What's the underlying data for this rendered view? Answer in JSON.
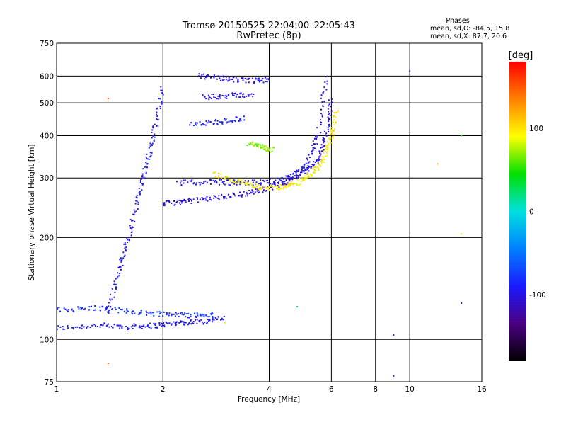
{
  "title": "Tromsø 20150525 22:04:00–22:05:43",
  "subtitle": "RwPretec (8p)",
  "info": {
    "heading": "Phases",
    "line1": "mean, sd,O: -84.5, 15.8",
    "line2": "mean, sd,X:  87.7, 20.6"
  },
  "colorbar": {
    "title": "[deg]",
    "ticks": [
      100,
      0,
      -100
    ],
    "tick_labels": [
      "100",
      "0",
      "-100"
    ],
    "range": [
      -180,
      180
    ],
    "colors": [
      "#000000",
      "#4b0082",
      "#1a1aff",
      "#0080ff",
      "#00e0e0",
      "#00e000",
      "#ffff00",
      "#ff8000",
      "#ff0000"
    ]
  },
  "chart_data": {
    "type": "scatter",
    "xlabel": "Frequency [MHz]",
    "ylabel": "Stationary phase Virtual Height [km]",
    "xscale": "log",
    "yscale": "log",
    "xlim": [
      1,
      16
    ],
    "ylim": [
      75,
      750
    ],
    "x_ticks": [
      1,
      2,
      4,
      6,
      8,
      10,
      16
    ],
    "x_tick_labels": [
      "1",
      "2",
      "4",
      "6",
      "8",
      "10",
      "16"
    ],
    "y_ticks": [
      75,
      100,
      200,
      300,
      400,
      500,
      600,
      750
    ],
    "y_tick_labels": [
      "75",
      "100",
      "200",
      "300",
      "400",
      "500",
      "600",
      "750"
    ],
    "grid": true,
    "color_quantity": "phase [deg]",
    "traces": [
      {
        "mode": "O",
        "freq": [
          1.0,
          1.3,
          1.6,
          1.9,
          2.2,
          2.6,
          3.0
        ],
        "height": [
          108,
          110,
          109,
          110,
          112,
          113,
          116
        ],
        "phase": -95
      },
      {
        "mode": "O",
        "freq": [
          1.0,
          1.3,
          1.6,
          2.0,
          2.4,
          2.8
        ],
        "height": [
          122,
          124,
          121,
          119,
          118,
          118
        ],
        "phase": -80
      },
      {
        "mode": "O",
        "freq": [
          1.4,
          1.5,
          1.6,
          1.7,
          1.8,
          1.9,
          2.0
        ],
        "height": [
          120,
          160,
          200,
          260,
          330,
          420,
          560
        ],
        "phase": -95
      },
      {
        "mode": "O",
        "freq": [
          2.0,
          2.3,
          2.8,
          3.3,
          3.8,
          4.4,
          5.0,
          5.5,
          5.8,
          6.0
        ],
        "height": [
          252,
          255,
          262,
          268,
          276,
          290,
          310,
          340,
          400,
          520
        ],
        "phase": -105
      },
      {
        "mode": "O",
        "freq": [
          2.2,
          2.8,
          3.4,
          4.0,
          4.6,
          5.1,
          5.5,
          5.8
        ],
        "height": [
          290,
          292,
          290,
          292,
          300,
          330,
          400,
          600
        ],
        "phase": -100
      },
      {
        "mode": "O",
        "freq": [
          2.5,
          3.0,
          3.5,
          4.0
        ],
        "height": [
          600,
          590,
          580,
          585
        ],
        "phase": -100
      },
      {
        "mode": "O",
        "freq": [
          2.6,
          3.1,
          3.6
        ],
        "height": [
          520,
          525,
          530
        ],
        "phase": -100
      },
      {
        "mode": "O",
        "freq": [
          2.4,
          2.9,
          3.4
        ],
        "height": [
          430,
          440,
          450
        ],
        "phase": -90
      },
      {
        "mode": "X",
        "freq": [
          2.8,
          3.3,
          3.8,
          4.3,
          4.8,
          5.3,
          5.7,
          6.0,
          6.2
        ],
        "height": [
          308,
          292,
          280,
          282,
          290,
          310,
          340,
          400,
          480
        ],
        "phase": 95
      },
      {
        "mode": "X",
        "freq": [
          3.5,
          3.8,
          4.1
        ],
        "height": [
          380,
          372,
          362
        ],
        "phase": 70
      }
    ],
    "scattered_points": [
      {
        "freq": 9.0,
        "height": 78,
        "phase": -100
      },
      {
        "freq": 9.0,
        "height": 103,
        "phase": -100
      },
      {
        "freq": 10.0,
        "height": 620,
        "phase": -100
      },
      {
        "freq": 14.0,
        "height": 400,
        "phase": 50
      },
      {
        "freq": 12.0,
        "height": 330,
        "phase": 120
      },
      {
        "freq": 14.0,
        "height": 205,
        "phase": 100
      },
      {
        "freq": 14.0,
        "height": 128,
        "phase": -90
      },
      {
        "freq": 4.8,
        "height": 125,
        "phase": 0
      },
      {
        "freq": 3.0,
        "height": 112,
        "phase": 80
      },
      {
        "freq": 1.4,
        "height": 85,
        "phase": 150
      },
      {
        "freq": 1.4,
        "height": 515,
        "phase": 160
      }
    ]
  }
}
